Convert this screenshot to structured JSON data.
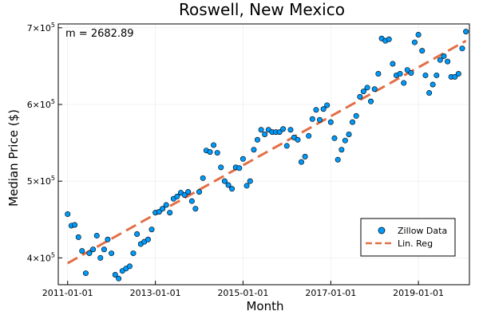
{
  "chart_data": {
    "type": "scatter",
    "title": "Roswell, New Mexico",
    "xlabel": "Month",
    "ylabel": "Median Price ($)",
    "annotation": "m = 2682.89",
    "x_ticks": [
      "2011-01-01",
      "2013-01-01",
      "2015-01-01",
      "2017-01-01",
      "2019-01-01"
    ],
    "y_ticks": [
      {
        "value": 400000,
        "mantissa": "4",
        "base": "×10",
        "exp": "5"
      },
      {
        "value": 500000,
        "mantissa": "5",
        "base": "×10",
        "exp": "5"
      },
      {
        "value": 600000,
        "mantissa": "6",
        "base": "×10",
        "exp": "5"
      },
      {
        "value": 700000,
        "mantissa": "7",
        "base": "×10",
        "exp": "5"
      }
    ],
    "xlim": [
      "2010-10-15",
      "2020-03-01"
    ],
    "ylim": [
      365000,
      705000
    ],
    "grid": true,
    "legend_position": "bottom-right",
    "colors": {
      "points": "#009AFA",
      "regression": "#E26F46"
    },
    "series": [
      {
        "name": "Zillow Data",
        "kind": "scatter",
        "points": [
          [
            "2011-01-01",
            457000
          ],
          [
            "2011-02-01",
            442000
          ],
          [
            "2011-03-01",
            443000
          ],
          [
            "2011-04-01",
            427000
          ],
          [
            "2011-05-01",
            409000
          ],
          [
            "2011-06-01",
            380000
          ],
          [
            "2011-07-01",
            406000
          ],
          [
            "2011-08-01",
            411000
          ],
          [
            "2011-09-01",
            429000
          ],
          [
            "2011-10-01",
            400000
          ],
          [
            "2011-11-01",
            411000
          ],
          [
            "2011-12-01",
            424000
          ],
          [
            "2012-01-01",
            406000
          ],
          [
            "2012-02-01",
            378000
          ],
          [
            "2012-03-01",
            373000
          ],
          [
            "2012-04-01",
            383000
          ],
          [
            "2012-05-01",
            386000
          ],
          [
            "2012-06-01",
            389000
          ],
          [
            "2012-07-01",
            406000
          ],
          [
            "2012-08-01",
            431000
          ],
          [
            "2012-09-01",
            418000
          ],
          [
            "2012-10-01",
            421000
          ],
          [
            "2012-11-01",
            424000
          ],
          [
            "2012-12-01",
            437000
          ],
          [
            "2013-01-01",
            459000
          ],
          [
            "2013-02-01",
            460000
          ],
          [
            "2013-03-01",
            464000
          ],
          [
            "2013-04-01",
            469000
          ],
          [
            "2013-05-01",
            459000
          ],
          [
            "2013-06-01",
            477000
          ],
          [
            "2013-07-01",
            480000
          ],
          [
            "2013-08-01",
            485000
          ],
          [
            "2013-09-01",
            482000
          ],
          [
            "2013-10-01",
            486000
          ],
          [
            "2013-11-01",
            474000
          ],
          [
            "2013-12-01",
            464000
          ],
          [
            "2014-01-01",
            486000
          ],
          [
            "2014-02-01",
            504000
          ],
          [
            "2014-03-01",
            540000
          ],
          [
            "2014-04-01",
            538000
          ],
          [
            "2014-05-01",
            547000
          ],
          [
            "2014-06-01",
            537000
          ],
          [
            "2014-07-01",
            518000
          ],
          [
            "2014-08-01",
            500000
          ],
          [
            "2014-09-01",
            495000
          ],
          [
            "2014-10-01",
            490000
          ],
          [
            "2014-11-01",
            518000
          ],
          [
            "2014-12-01",
            517000
          ],
          [
            "2015-01-01",
            529000
          ],
          [
            "2015-02-01",
            494000
          ],
          [
            "2015-03-01",
            500000
          ],
          [
            "2015-04-01",
            541000
          ],
          [
            "2015-05-01",
            554000
          ],
          [
            "2015-06-01",
            567000
          ],
          [
            "2015-07-01",
            561000
          ],
          [
            "2015-08-01",
            567000
          ],
          [
            "2015-09-01",
            564000
          ],
          [
            "2015-10-01",
            564000
          ],
          [
            "2015-11-01",
            564000
          ],
          [
            "2015-12-01",
            568000
          ],
          [
            "2016-01-01",
            546000
          ],
          [
            "2016-02-01",
            567000
          ],
          [
            "2016-03-01",
            557000
          ],
          [
            "2016-04-01",
            554000
          ],
          [
            "2016-05-01",
            525000
          ],
          [
            "2016-06-01",
            532000
          ],
          [
            "2016-07-01",
            559000
          ],
          [
            "2016-08-01",
            581000
          ],
          [
            "2016-09-01",
            593000
          ],
          [
            "2016-10-01",
            580000
          ],
          [
            "2016-11-01",
            594000
          ],
          [
            "2016-12-01",
            599000
          ],
          [
            "2017-01-01",
            577000
          ],
          [
            "2017-02-01",
            556000
          ],
          [
            "2017-03-01",
            528000
          ],
          [
            "2017-04-01",
            541000
          ],
          [
            "2017-05-01",
            553000
          ],
          [
            "2017-06-01",
            561000
          ],
          [
            "2017-07-01",
            577000
          ],
          [
            "2017-08-01",
            585000
          ],
          [
            "2017-09-01",
            610000
          ],
          [
            "2017-10-01",
            617000
          ],
          [
            "2017-11-01",
            622000
          ],
          [
            "2017-12-01",
            604000
          ],
          [
            "2018-01-01",
            620000
          ],
          [
            "2018-02-01",
            640000
          ],
          [
            "2018-03-01",
            686000
          ],
          [
            "2018-04-01",
            683000
          ],
          [
            "2018-05-01",
            685000
          ],
          [
            "2018-06-01",
            653000
          ],
          [
            "2018-07-01",
            638000
          ],
          [
            "2018-08-01",
            640000
          ],
          [
            "2018-09-01",
            628000
          ],
          [
            "2018-10-01",
            645000
          ],
          [
            "2018-11-01",
            641000
          ],
          [
            "2018-12-01",
            681000
          ],
          [
            "2019-01-01",
            691000
          ],
          [
            "2019-02-01",
            670000
          ],
          [
            "2019-03-01",
            638000
          ],
          [
            "2019-04-01",
            615000
          ],
          [
            "2019-05-01",
            626000
          ],
          [
            "2019-06-01",
            638000
          ],
          [
            "2019-07-01",
            658000
          ],
          [
            "2019-08-01",
            663000
          ],
          [
            "2019-09-01",
            656000
          ],
          [
            "2019-10-01",
            636000
          ],
          [
            "2019-11-01",
            636000
          ],
          [
            "2019-12-01",
            640000
          ],
          [
            "2020-01-01",
            673000
          ],
          [
            "2020-02-01",
            695000
          ]
        ]
      },
      {
        "name": "Lin. Reg",
        "kind": "line",
        "dashed": true,
        "points": [
          [
            "2011-01-01",
            393000
          ],
          [
            "2020-02-01",
            683000
          ]
        ]
      }
    ]
  }
}
